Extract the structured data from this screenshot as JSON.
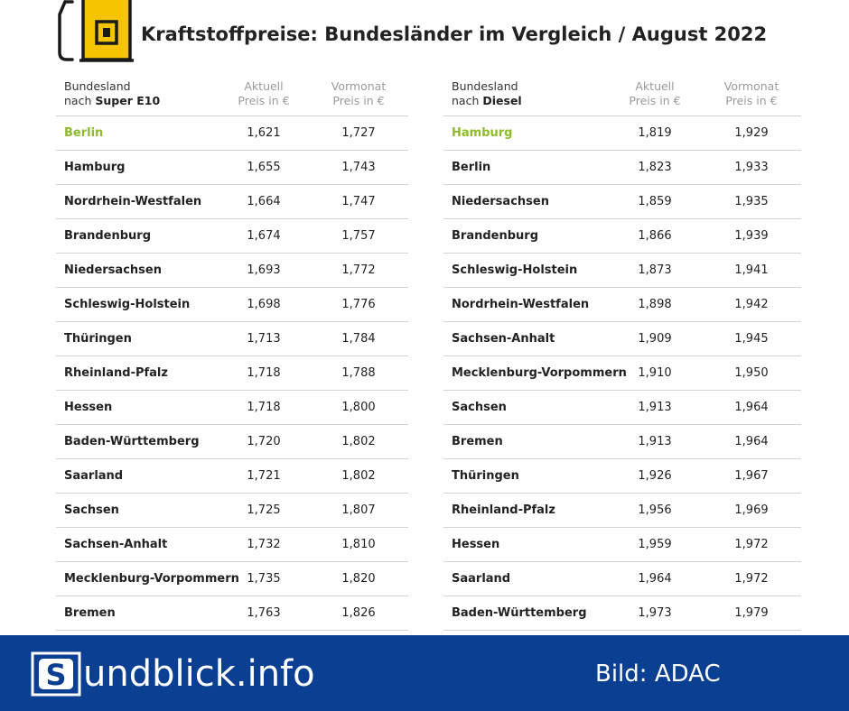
{
  "header": {
    "title": "Kraftstoffpreise: Bundesländer im Vergleich / August 2022"
  },
  "columns": {
    "name_line1": "Bundesland",
    "name_prefix": "nach",
    "current_line1": "Aktuell",
    "current_line2": "Preis in €",
    "previous_line1": "Vormonat",
    "previous_line2": "Preis in €"
  },
  "tables": [
    {
      "fuel": "Super E10",
      "rows": [
        {
          "state": "Berlin",
          "current": "1,621",
          "previous": "1,727"
        },
        {
          "state": "Hamburg",
          "current": "1,655",
          "previous": "1,743"
        },
        {
          "state": "Nordrhein-Westfalen",
          "current": "1,664",
          "previous": "1,747"
        },
        {
          "state": "Brandenburg",
          "current": "1,674",
          "previous": "1,757"
        },
        {
          "state": "Niedersachsen",
          "current": "1,693",
          "previous": "1,772"
        },
        {
          "state": "Schleswig-Holstein",
          "current": "1,698",
          "previous": "1,776"
        },
        {
          "state": "Thüringen",
          "current": "1,713",
          "previous": "1,784"
        },
        {
          "state": "Rheinland-Pfalz",
          "current": "1,718",
          "previous": "1,788"
        },
        {
          "state": "Hessen",
          "current": "1,718",
          "previous": "1,800"
        },
        {
          "state": "Baden-Württemberg",
          "current": "1,720",
          "previous": "1,802"
        },
        {
          "state": "Saarland",
          "current": "1,721",
          "previous": "1,802"
        },
        {
          "state": "Sachsen",
          "current": "1,725",
          "previous": "1,807"
        },
        {
          "state": "Sachsen-Anhalt",
          "current": "1,732",
          "previous": "1,810"
        },
        {
          "state": "Mecklenburg-Vorpommern",
          "current": "1,735",
          "previous": "1,820"
        },
        {
          "state": "Bremen",
          "current": "1,763",
          "previous": "1,826"
        }
      ]
    },
    {
      "fuel": "Diesel",
      "rows": [
        {
          "state": "Hamburg",
          "current": "1,819",
          "previous": "1,929"
        },
        {
          "state": "Berlin",
          "current": "1,823",
          "previous": "1,933"
        },
        {
          "state": "Niedersachsen",
          "current": "1,859",
          "previous": "1,935"
        },
        {
          "state": "Brandenburg",
          "current": "1,866",
          "previous": "1,939"
        },
        {
          "state": "Schleswig-Holstein",
          "current": "1,873",
          "previous": "1,941"
        },
        {
          "state": "Nordrhein-Westfalen",
          "current": "1,898",
          "previous": "1,942"
        },
        {
          "state": "Sachsen-Anhalt",
          "current": "1,909",
          "previous": "1,945"
        },
        {
          "state": "Mecklenburg-Vorpommern",
          "current": "1,910",
          "previous": "1,950"
        },
        {
          "state": "Sachsen",
          "current": "1,913",
          "previous": "1,964"
        },
        {
          "state": "Bremen",
          "current": "1,913",
          "previous": "1,964"
        },
        {
          "state": "Thüringen",
          "current": "1,926",
          "previous": "1,967"
        },
        {
          "state": "Rheinland-Pfalz",
          "current": "1,956",
          "previous": "1,969"
        },
        {
          "state": "Hessen",
          "current": "1,959",
          "previous": "1,972"
        },
        {
          "state": "Saarland",
          "current": "1,964",
          "previous": "1,972"
        },
        {
          "state": "Baden-Württemberg",
          "current": "1,973",
          "previous": "1,979"
        }
      ]
    }
  ],
  "footer": {
    "logo_letter": "S",
    "logo_text": "undblick.info",
    "credit": "Bild: ADAC"
  },
  "colors": {
    "highlight": "#8dbb2c",
    "footer_bg": "#0b3f91",
    "pump_yellow": "#f5c400"
  },
  "icons": [
    "fuel-pump-icon",
    "sundblick-logo-icon"
  ]
}
